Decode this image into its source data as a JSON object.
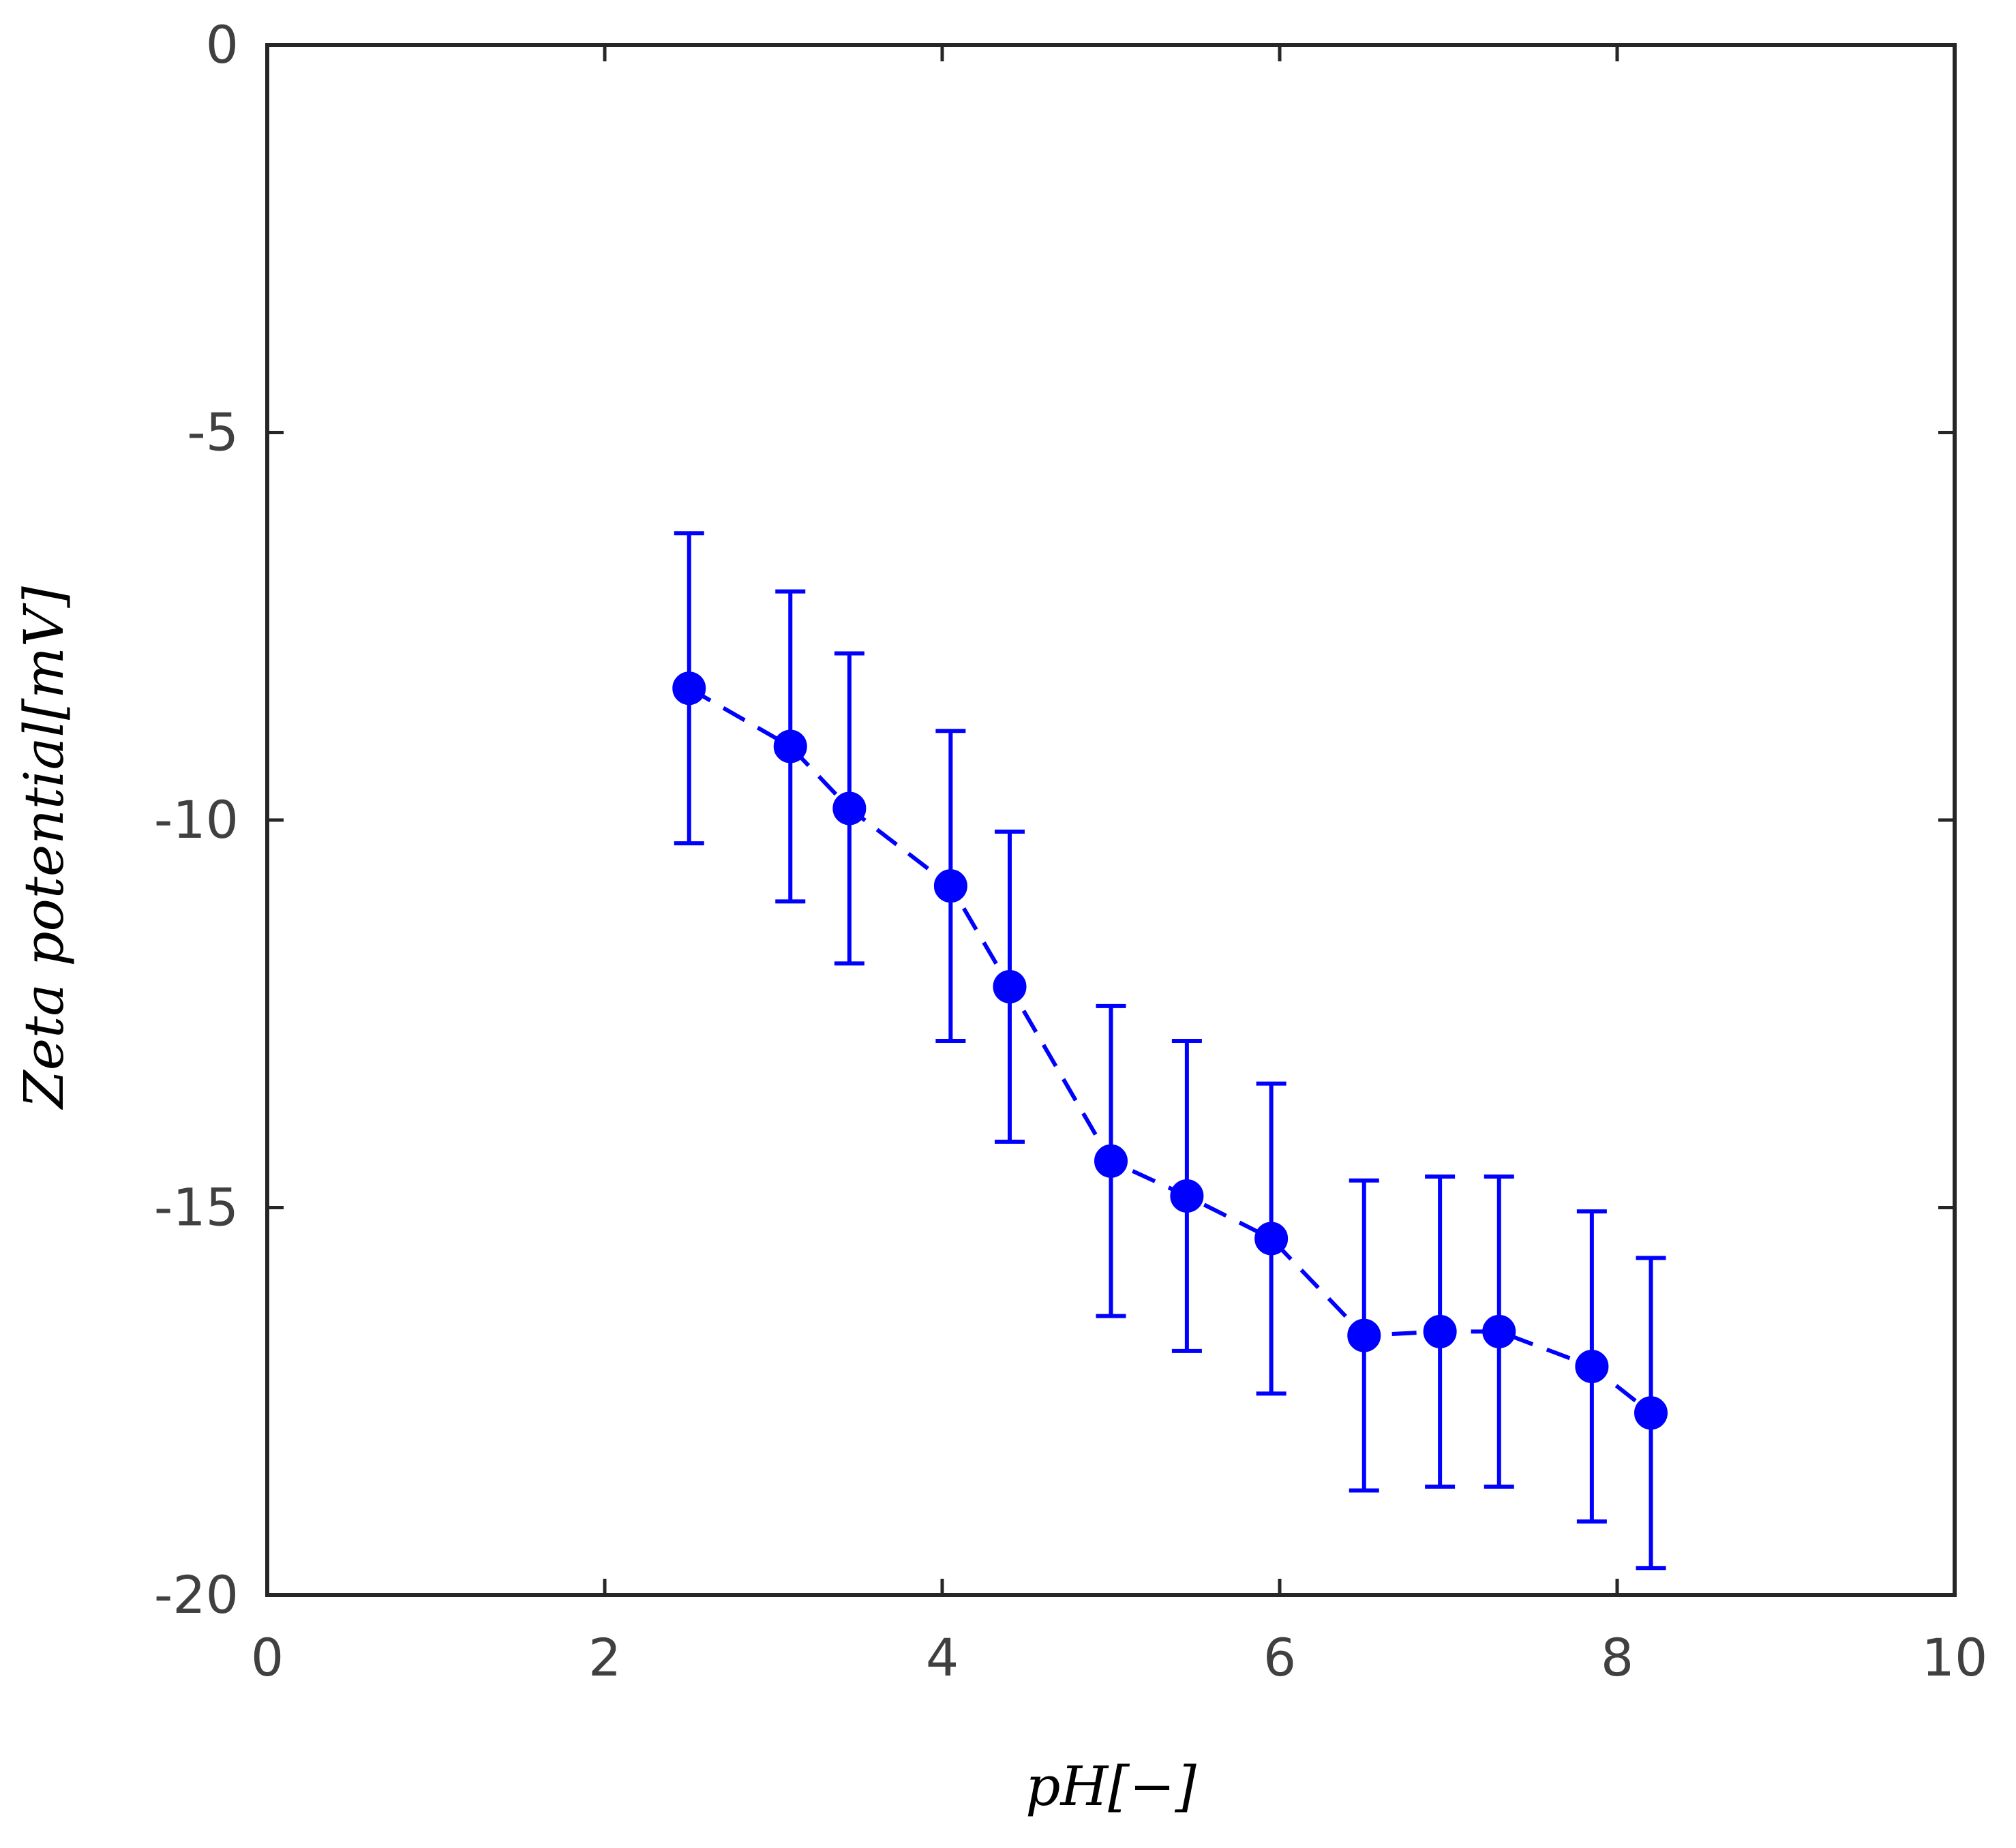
{
  "chart_data": {
    "type": "scatter",
    "title": "",
    "xlabel": "pH[−]",
    "ylabel": "Zeta potential[mV]",
    "xlim": [
      0,
      10
    ],
    "ylim": [
      -20,
      0
    ],
    "xticks": [
      0,
      2,
      4,
      6,
      8,
      10
    ],
    "yticks": [
      0,
      -5,
      -10,
      -15,
      -20
    ],
    "xtick_labels": [
      "0",
      "2",
      "4",
      "6",
      "8",
      "10"
    ],
    "ytick_labels": [
      "0",
      "-5",
      "-10",
      "-15",
      "-20"
    ],
    "grid": false,
    "line_style": "dashed",
    "marker": "filled-circle",
    "series": [
      {
        "color": "#0000ff",
        "x": [
          2.5,
          3.1,
          3.45,
          4.05,
          4.4,
          5.0,
          5.45,
          5.95,
          6.5,
          6.95,
          7.3,
          7.85,
          8.2
        ],
        "y": [
          -8.3,
          -9.05,
          -9.85,
          -10.85,
          -12.15,
          -14.4,
          -14.85,
          -15.4,
          -16.65,
          -16.6,
          -16.6,
          -17.05,
          -17.65
        ],
        "error": [
          2.0,
          2.0,
          2.0,
          2.0,
          2.0,
          2.0,
          2.0,
          2.0,
          2.0,
          2.0,
          2.0,
          2.0,
          2.0
        ]
      }
    ]
  }
}
